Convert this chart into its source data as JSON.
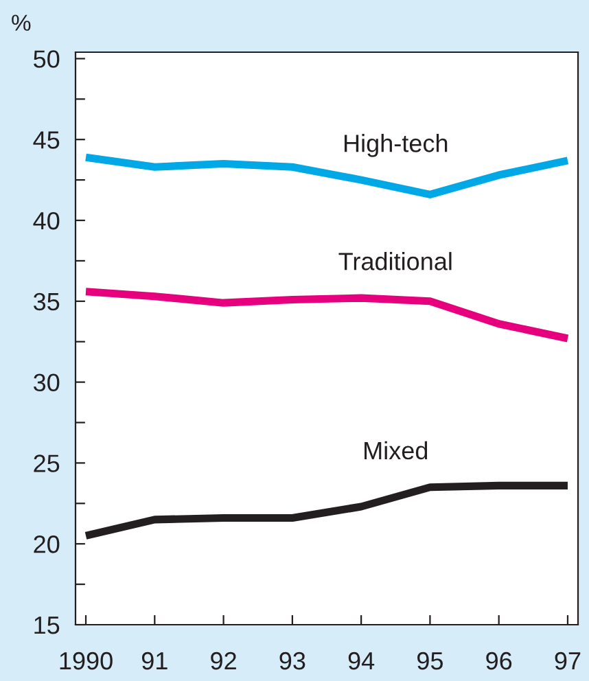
{
  "chart_data": {
    "type": "line",
    "ylabel": "%",
    "x": [
      1990,
      1991,
      1992,
      1993,
      1994,
      1995,
      1996,
      1997
    ],
    "xlim": [
      1989.85,
      1997.15
    ],
    "ylim": [
      15,
      50.4
    ],
    "xticks": [
      1990,
      {
        "value": 1991,
        "label": "91"
      },
      {
        "value": 1992,
        "label": "92"
      },
      {
        "value": 1993,
        "label": "93"
      },
      {
        "value": 1994,
        "label": "94"
      },
      {
        "value": 1995,
        "label": "95"
      },
      {
        "value": 1996,
        "label": "96"
      },
      {
        "value": 1997,
        "label": "97"
      }
    ],
    "yticks": [
      15,
      {
        "value": 17.5,
        "label": null
      },
      20,
      {
        "value": 22.5,
        "label": null
      },
      25,
      {
        "value": 27.5,
        "label": null
      },
      30,
      {
        "value": 32.5,
        "label": null
      },
      35,
      {
        "value": 37.5,
        "label": null
      },
      40,
      {
        "value": 42.5,
        "label": null
      },
      45,
      {
        "value": 47.5,
        "label": null
      },
      50
    ],
    "grid": false,
    "legend": false,
    "marker": "none",
    "line_style": "solid",
    "series": [
      {
        "name": "High-tech",
        "color": "#00a9e6",
        "values": [
          43.9,
          43.3,
          43.5,
          43.3,
          42.5,
          41.6,
          42.8,
          43.7
        ]
      },
      {
        "name": "Traditional",
        "color": "#e6007e",
        "values": [
          35.6,
          35.3,
          34.9,
          35.1,
          35.2,
          35.0,
          33.6,
          32.7
        ]
      },
      {
        "name": "Mixed",
        "color": "#231f20",
        "values": [
          20.5,
          21.5,
          21.6,
          21.6,
          22.3,
          23.5,
          23.6,
          23.6
        ]
      }
    ]
  }
}
